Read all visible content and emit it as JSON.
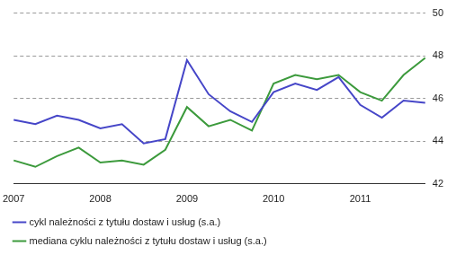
{
  "chart_data": {
    "type": "line",
    "categories": [
      "2007",
      null,
      null,
      null,
      "2008",
      null,
      null,
      null,
      "2009",
      null,
      null,
      null,
      "2010",
      null,
      null,
      null,
      "2011",
      null,
      null,
      null
    ],
    "series": [
      {
        "name": "cykl należności z tytułu dostaw i usług (s.a.)",
        "color": "#4646c8",
        "values": [
          45.0,
          44.8,
          45.2,
          45.0,
          44.6,
          44.8,
          43.9,
          44.1,
          47.8,
          46.2,
          45.4,
          44.9,
          46.3,
          46.7,
          46.4,
          47.0,
          45.7,
          45.1,
          45.9,
          45.8
        ]
      },
      {
        "name": "mediana cyklu należności z tytułu dostaw i usług (s.a.)",
        "color": "#3c9a3c",
        "values": [
          43.1,
          42.8,
          43.3,
          43.7,
          43.0,
          43.1,
          42.9,
          43.6,
          45.6,
          44.7,
          45.0,
          44.5,
          46.7,
          47.1,
          46.9,
          47.1,
          46.3,
          45.9,
          47.1,
          47.9
        ]
      }
    ],
    "ylim": [
      42,
      50
    ],
    "yticks": [
      42,
      44,
      46,
      48,
      50
    ],
    "grid": true,
    "legend": "bottom"
  }
}
